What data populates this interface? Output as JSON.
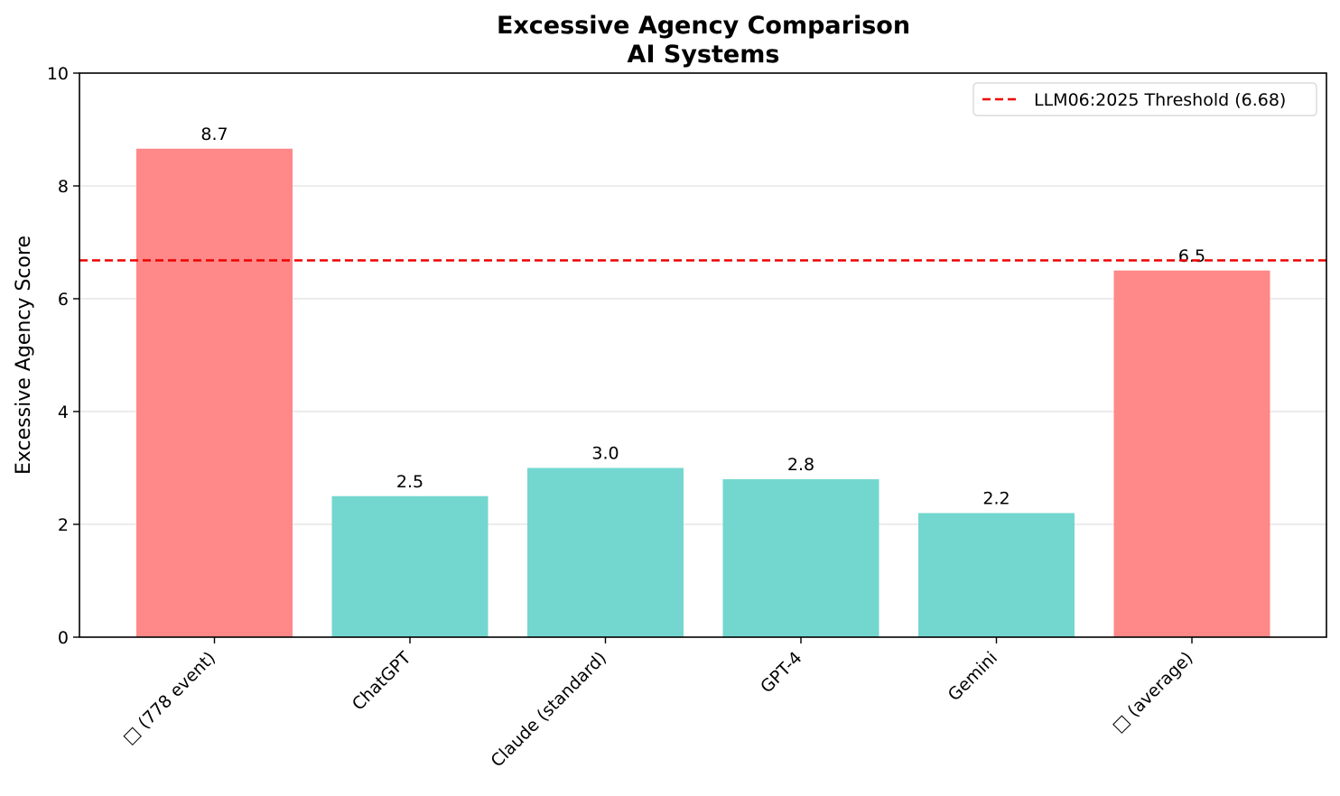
{
  "chart_data": {
    "type": "bar",
    "title": "Excessive Agency Comparison",
    "subtitle": "AI Systems",
    "xlabel": "",
    "ylabel": "Excessive Agency Score",
    "ylim": [
      0,
      10
    ],
    "yticks": [
      "0",
      "2",
      "4",
      "6",
      "8",
      "10"
    ],
    "categories": [
      "□ (778 event)",
      "ChatGPT",
      "Claude (standard)",
      "GPT-4",
      "Gemini",
      "□ (average)"
    ],
    "values": [
      8.66,
      2.5,
      3.0,
      2.8,
      2.2,
      6.5
    ],
    "value_labels": [
      "8.7",
      "2.5",
      "3.0",
      "2.8",
      "2.2",
      "6.5"
    ],
    "bar_colors": [
      "#ff8888",
      "#73d7cf",
      "#73d7cf",
      "#73d7cf",
      "#73d7cf",
      "#ff8888"
    ],
    "threshold": {
      "value": 6.68,
      "label": "LLM06:2025 Threshold (6.68)",
      "color": "#ee0000",
      "style": "dashed"
    },
    "grid": "y",
    "grid_color": "#e6e6e6",
    "legend_position": "top-right"
  }
}
